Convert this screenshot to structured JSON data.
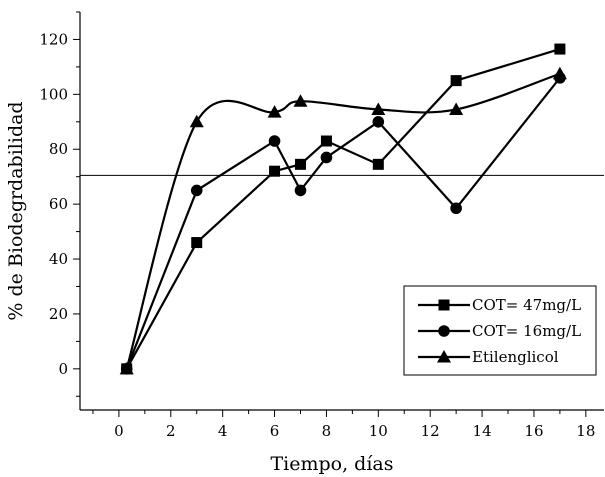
{
  "chart_data": {
    "type": "line",
    "title": "",
    "xlabel": "Tiempo, días",
    "ylabel": "% de Biodegrdabilidad",
    "xlim": [
      -1.5,
      18.7
    ],
    "ylim": [
      -15,
      130
    ],
    "xticks": [
      0,
      2,
      4,
      6,
      8,
      10,
      12,
      14,
      16,
      18
    ],
    "yticks": [
      0,
      20,
      40,
      60,
      80,
      100,
      120
    ],
    "grid": false,
    "legend_position": "lower-right",
    "reference_line": {
      "y": 70.5
    },
    "series": [
      {
        "name": "COT= 47mg/L",
        "marker": "square",
        "x": [
          0.3,
          3,
          6,
          7,
          8,
          10,
          13,
          17
        ],
        "y": [
          0,
          46,
          72,
          74.5,
          83,
          74.5,
          105,
          116.5
        ]
      },
      {
        "name": "COT= 16mg/L",
        "marker": "circle",
        "x": [
          0.3,
          3,
          6,
          7,
          8,
          10,
          13,
          17
        ],
        "y": [
          0,
          65,
          83,
          65,
          77,
          90,
          58.5,
          106
        ]
      },
      {
        "name": "Etilenglicol",
        "marker": "triangle",
        "smooth": true,
        "x": [
          0.3,
          3,
          6,
          7,
          10,
          13,
          17
        ],
        "y": [
          0,
          90,
          93.5,
          97.5,
          94.5,
          94.5,
          107.5
        ]
      }
    ]
  }
}
